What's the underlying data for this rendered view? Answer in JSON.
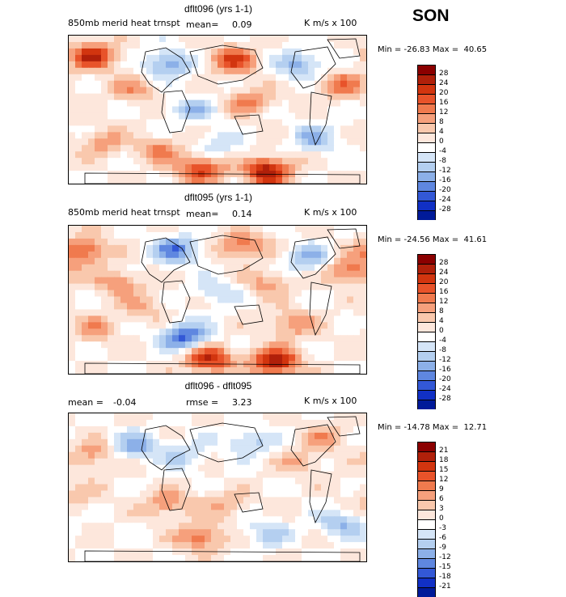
{
  "season": "SON",
  "units_label": "K m/s x 100",
  "chart_data": [
    {
      "type": "heatmap",
      "title": "dflt096 (yrs 1-1)",
      "variable_label": "850mb merid heat trnspt",
      "stats": [
        {
          "label": "mean=",
          "value": "0.09"
        }
      ],
      "min_max": "Min = -26.83 Max =  40.65",
      "colorbar": {
        "levels": [
          "28",
          "24",
          "20",
          "16",
          "12",
          "8",
          "4",
          "0",
          "-4",
          "-8",
          "-12",
          "-16",
          "-20",
          "-24",
          "-28"
        ],
        "colors": [
          "#8b0000",
          "#b0200a",
          "#d2350f",
          "#e8532a",
          "#f07a4e",
          "#f6a07c",
          "#f9c8ad",
          "#fde7dc",
          "#ffffff",
          "#d5e5f7",
          "#b4cff0",
          "#8cb0e8",
          "#5f87e0",
          "#3358d6",
          "#1130c5",
          "#001a99"
        ]
      },
      "hotspots": [
        {
          "lon": 20,
          "lat": 60,
          "v": 20
        },
        {
          "lon": -150,
          "lat": 65,
          "v": 24
        },
        {
          "lon": 60,
          "lat": -75,
          "v": 28
        },
        {
          "lon": -20,
          "lat": -72,
          "v": 22
        },
        {
          "lon": 100,
          "lat": 55,
          "v": -14
        },
        {
          "lon": -60,
          "lat": 55,
          "v": -16
        },
        {
          "lon": 40,
          "lat": 10,
          "v": 12
        },
        {
          "lon": -100,
          "lat": 25,
          "v": 10
        },
        {
          "lon": -140,
          "lat": -40,
          "v": 10
        },
        {
          "lon": 150,
          "lat": 30,
          "v": 14
        },
        {
          "lon": -30,
          "lat": 0,
          "v": -10
        },
        {
          "lon": 120,
          "lat": -35,
          "v": -12
        },
        {
          "lon": -70,
          "lat": -50,
          "v": 12
        },
        {
          "lon": 0,
          "lat": -45,
          "v": -8
        }
      ]
    },
    {
      "type": "heatmap",
      "title": "dflt095 (yrs 1-1)",
      "variable_label": "850mb merid heat trnspt",
      "stats": [
        {
          "label": "mean=",
          "value": "0.14"
        }
      ],
      "min_max": "Min = -24.56 Max =  41.61",
      "colorbar": {
        "levels": [
          "28",
          "24",
          "20",
          "16",
          "12",
          "8",
          "4",
          "0",
          "-4",
          "-8",
          "-12",
          "-16",
          "-20",
          "-24",
          "-28"
        ],
        "colors": [
          "#8b0000",
          "#b0200a",
          "#d2350f",
          "#e8532a",
          "#f07a4e",
          "#f6a07c",
          "#f9c8ad",
          "#fde7dc",
          "#ffffff",
          "#d5e5f7",
          "#b4cff0",
          "#8cb0e8",
          "#5f87e0",
          "#3358d6",
          "#1130c5",
          "#001a99"
        ]
      },
      "hotspots": [
        {
          "lon": 30,
          "lat": 65,
          "v": 16
        },
        {
          "lon": -160,
          "lat": 60,
          "v": 18
        },
        {
          "lon": 70,
          "lat": -75,
          "v": 28
        },
        {
          "lon": -10,
          "lat": -72,
          "v": 24
        },
        {
          "lon": 110,
          "lat": 50,
          "v": -12
        },
        {
          "lon": -50,
          "lat": 60,
          "v": -18
        },
        {
          "lon": -40,
          "lat": -45,
          "v": -22
        },
        {
          "lon": 60,
          "lat": 20,
          "v": 10
        },
        {
          "lon": -120,
          "lat": 20,
          "v": 12
        },
        {
          "lon": 160,
          "lat": 35,
          "v": 16
        },
        {
          "lon": -150,
          "lat": -35,
          "v": 10
        },
        {
          "lon": 90,
          "lat": -30,
          "v": 12
        },
        {
          "lon": 0,
          "lat": 10,
          "v": -8
        },
        {
          "lon": -90,
          "lat": -10,
          "v": 8
        }
      ]
    },
    {
      "type": "heatmap",
      "title": "dflt096 - dflt095",
      "variable_label": "",
      "stats": [
        {
          "label": "mean =",
          "value": "-0.04"
        },
        {
          "label": "rmse =",
          "value": "3.23"
        }
      ],
      "min_max": "Min = -14.78 Max =  12.71",
      "colorbar": {
        "levels": [
          "21",
          "18",
          "15",
          "12",
          "9",
          "6",
          "3",
          "0",
          "-3",
          "-6",
          "-9",
          "-12",
          "-15",
          "-18",
          "-21"
        ],
        "colors": [
          "#8b0000",
          "#b0200a",
          "#d2350f",
          "#e8532a",
          "#f07a4e",
          "#f6a07c",
          "#f9c8ad",
          "#fde7dc",
          "#ffffff",
          "#d5e5f7",
          "#b4cff0",
          "#8cb0e8",
          "#5f87e0",
          "#3358d6",
          "#1130c5",
          "#001a99"
        ]
      },
      "hotspots": [
        {
          "lon": -20,
          "lat": -60,
          "v": 12
        },
        {
          "lon": -150,
          "lat": 40,
          "v": 8
        },
        {
          "lon": 40,
          "lat": 55,
          "v": -8
        },
        {
          "lon": 100,
          "lat": 30,
          "v": 6
        },
        {
          "lon": -60,
          "lat": -20,
          "v": 9
        },
        {
          "lon": 150,
          "lat": -45,
          "v": -9
        },
        {
          "lon": -100,
          "lat": 50,
          "v": -10
        },
        {
          "lon": 10,
          "lat": -20,
          "v": 6
        },
        {
          "lon": 60,
          "lat": -55,
          "v": -7
        },
        {
          "lon": -170,
          "lat": -10,
          "v": 5
        },
        {
          "lon": 130,
          "lat": 60,
          "v": 7
        },
        {
          "lon": -40,
          "lat": 40,
          "v": -6
        }
      ]
    }
  ]
}
